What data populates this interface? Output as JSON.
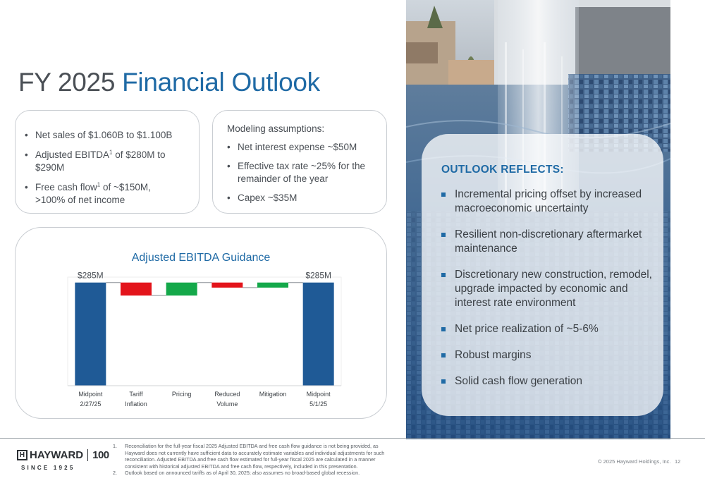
{
  "title": {
    "prefix": "FY 2025",
    "emphasis": "Financial Outlook"
  },
  "left_card": {
    "items": [
      {
        "pre": "Net sales of $1.060B to $1.100B"
      },
      {
        "pre": "Adjusted EBITDA",
        "sup": "1",
        "post": " of $280M to $290M"
      },
      {
        "pre": "Free cash flow",
        "sup": "1",
        "post": " of ~$150M,",
        "line2": ">100% of net income"
      }
    ]
  },
  "modeling": {
    "heading": "Modeling assumptions:",
    "items": [
      "Net interest expense ~$50M",
      "Effective tax rate ~25% for the remainder of the year",
      "Capex ~$35M"
    ]
  },
  "chart_data": {
    "type": "waterfall",
    "title": "Adjusted EBITDA Guidance",
    "categories": [
      "Midpoint 2/27/25",
      "Tariff Inflation",
      "Pricing",
      "Reduced Volume",
      "Mitigation",
      "Midpoint 5/1/25"
    ],
    "category_lines": [
      [
        "Midpoint",
        "2/27/25"
      ],
      [
        "Tariff",
        "Inflation"
      ],
      [
        "Pricing"
      ],
      [
        "Reduced",
        "Volume"
      ],
      [
        "Mitigation"
      ],
      [
        "Midpoint",
        "5/1/25"
      ]
    ],
    "bars": [
      {
        "kind": "total",
        "start": 0,
        "end": 285,
        "label": "$285M"
      },
      {
        "kind": "decrease",
        "start": 285,
        "end": 249
      },
      {
        "kind": "increase",
        "start": 249,
        "end": 285
      },
      {
        "kind": "decrease",
        "start": 285,
        "end": 271
      },
      {
        "kind": "increase",
        "start": 271,
        "end": 285
      },
      {
        "kind": "total",
        "start": 0,
        "end": 285,
        "label": "$285M"
      }
    ],
    "ylim": [
      0,
      300
    ],
    "colors": {
      "total": "#1f5a96",
      "decrease": "#e3141b",
      "increase": "#14a84a"
    }
  },
  "panel": {
    "heading": "OUTLOOK REFLECTS:",
    "items": [
      "Incremental pricing offset by increased macroeconomic uncertainty",
      "Resilient non-discretionary aftermarket maintenance",
      "Discretionary new construction, remodel, upgrade impacted by economic and interest rate environment",
      "Net price realization of ~5-6%",
      "Robust margins",
      "Solid cash flow generation"
    ]
  },
  "footer": {
    "logo_name": "HAYWARD",
    "logo_mark": "H",
    "logo_100": "100",
    "logo_since": "SINCE 1925",
    "notes": [
      {
        "num": "1.",
        "text": "Reconciliation for the full-year fiscal 2025 Adjusted EBITDA and free cash flow guidance is not being provided, as Hayward does not currently have sufficient data to accurately estimate variables and individual adjustments for such reconciliation. Adjusted EBITDA and free cash flow estimated for full-year fiscal 2025 are calculated in a manner consistent with historical adjusted EBITDA and free cash flow, respectively, included in this presentation."
      },
      {
        "num": "2.",
        "text": "Outlook based on announced tariffs as of April 30, 2025; also assumes no broad-based global recession."
      }
    ],
    "copyright": "© 2025 Hayward Holdings, Inc.",
    "page": "12"
  }
}
